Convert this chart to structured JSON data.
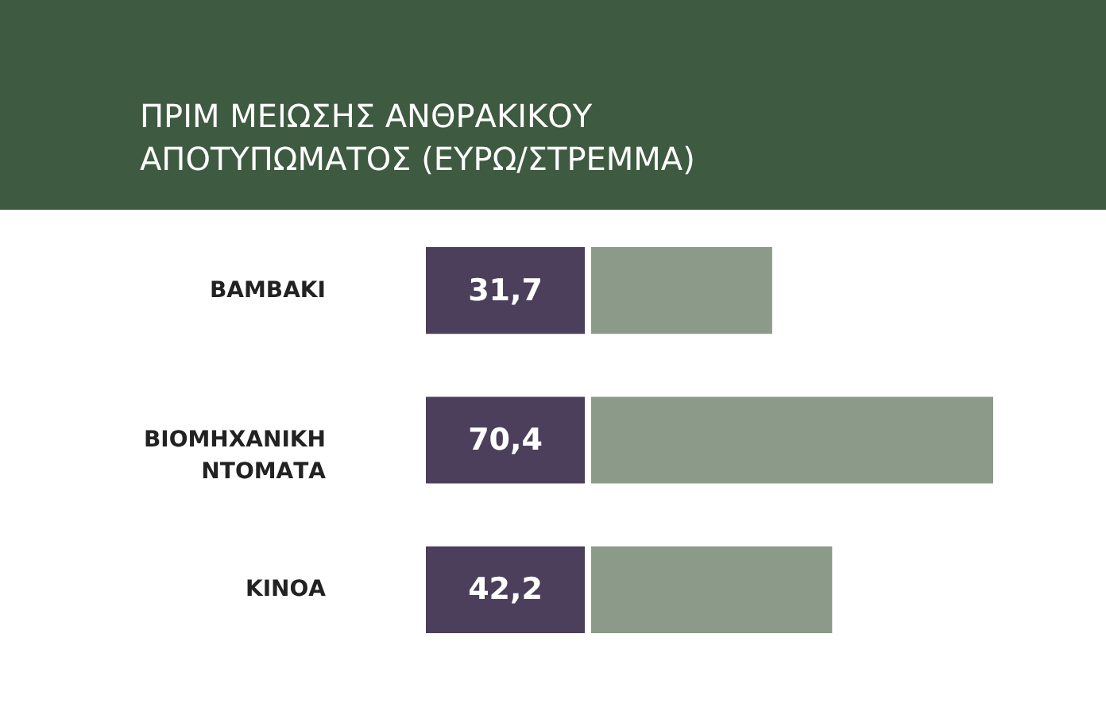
{
  "chart_data": {
    "type": "bar",
    "orientation": "horizontal",
    "title": "ΠΡΙΜ ΜΕΙΩΣΗΣ ΑΝΘΡΑΚΙΚΟΥ ΑΠΟΤΥΠΩΜΑΤΟΣ (ΕΥΡΩ/ΣΤΡΕΜΜΑ)",
    "categories": [
      "ΒΑΜΒΑΚΙ",
      "ΒΙΟΜΗΧΑΝΙΚΗ ΝΤΟΜΑΤΑ",
      "ΚΙΝΟΑ"
    ],
    "values": [
      31.7,
      70.4,
      42.2
    ],
    "value_labels": [
      "31,7",
      "70,4",
      "42,2"
    ],
    "color": "#8c9a8a"
  }
}
